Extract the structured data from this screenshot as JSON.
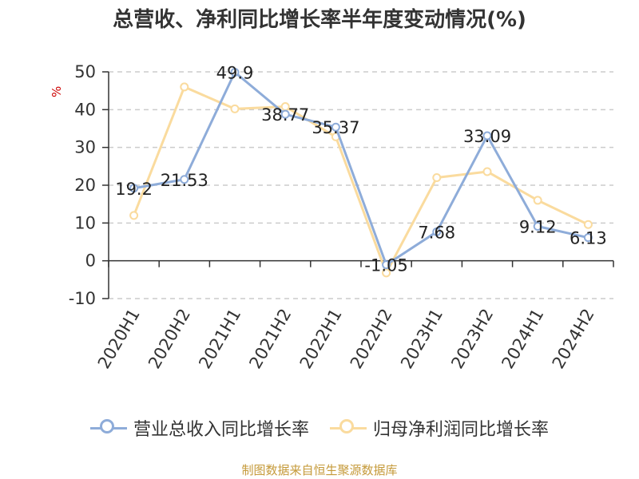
{
  "title": "总营收、净利同比增长率半年度变动情况(%)",
  "unit_label": "%",
  "source": "制图数据来自恒生聚源数据库",
  "colors": {
    "revenue": "#8eacd9",
    "profit": "#fadb9e",
    "axis": "#333333",
    "grid": "#cccccc"
  },
  "legend": [
    {
      "label": "营业总收入同比增长率",
      "color": "#8eacd9"
    },
    {
      "label": "归母净利润同比增长率",
      "color": "#fadb9e"
    }
  ],
  "chart_data": {
    "type": "line",
    "categories": [
      "2020H1",
      "2020H2",
      "2021H1",
      "2021H2",
      "2022H1",
      "2022H2",
      "2023H1",
      "2023H2",
      "2024H1",
      "2024H2"
    ],
    "ylim": [
      -10,
      50
    ],
    "yticks": [
      -10,
      0,
      10,
      20,
      30,
      40,
      50
    ],
    "grid": true,
    "legend_position": "bottom",
    "series": [
      {
        "name": "营业总收入同比增长率",
        "color": "#8eacd9",
        "values": [
          19.2,
          21.53,
          49.9,
          38.77,
          35.37,
          -1.05,
          7.68,
          33.09,
          9.12,
          6.13
        ],
        "labels": [
          "19.2",
          "21.53",
          "49.9",
          "38.77",
          "35.37",
          "-1.05",
          "7.68",
          "33.09",
          "9.12",
          "6.13"
        ]
      },
      {
        "name": "归母净利润同比增长率",
        "color": "#fadb9e",
        "values": [
          12,
          46,
          40.2,
          40.8,
          32.8,
          -3.2,
          22,
          23.6,
          16,
          9.6
        ]
      }
    ]
  }
}
